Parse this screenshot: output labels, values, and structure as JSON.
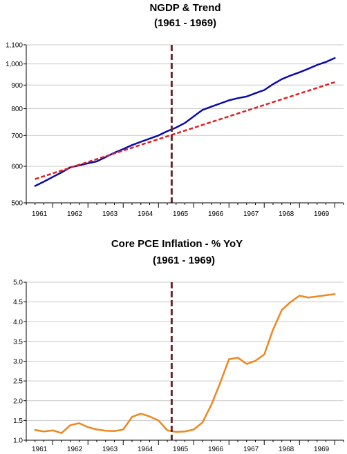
{
  "chart_data": [
    {
      "type": "line",
      "title": "NGDP & Trend",
      "subtitle": "(1961 - 1969)",
      "scale": "log",
      "ylim": [
        500,
        1100
      ],
      "yticks": [
        500,
        600,
        700,
        800,
        900,
        1000,
        1100
      ],
      "ytick_labels": [
        "500",
        "600",
        "700",
        "800",
        "900",
        "1,000",
        "1,100"
      ],
      "xlim": [
        1960.75,
        1969.75
      ],
      "xticks": [
        1961,
        1962,
        1963,
        1964,
        1965,
        1966,
        1967,
        1968,
        1969
      ],
      "xtick_labels": [
        "1961",
        "1962",
        "1963",
        "1964",
        "1965",
        "1966",
        "1967",
        "1968",
        "1969"
      ],
      "grid": "horizontal",
      "vline": {
        "x": 1964.875,
        "color": "#6b2a2a"
      },
      "series": [
        {
          "color": "#0a0aa8",
          "style": "solid",
          "x": [
            1961.0,
            1961.25,
            1961.5,
            1961.75,
            1962.0,
            1962.25,
            1962.5,
            1962.75,
            1963.0,
            1963.25,
            1963.5,
            1963.75,
            1964.0,
            1964.25,
            1964.5,
            1964.75,
            1965.0,
            1965.25,
            1965.5,
            1965.75,
            1966.0,
            1966.25,
            1966.5,
            1966.75,
            1967.0,
            1967.25,
            1967.5,
            1967.75,
            1968.0,
            1968.25,
            1968.5,
            1968.75,
            1969.0,
            1969.25,
            1969.5
          ],
          "y": [
            544,
            556,
            569,
            582,
            597,
            603,
            609,
            615,
            628,
            642,
            654,
            667,
            678,
            689,
            700,
            715,
            728,
            745,
            770,
            795,
            808,
            821,
            834,
            843,
            850,
            864,
            878,
            904,
            927,
            944,
            959,
            976,
            995,
            1010,
            1030
          ]
        },
        {
          "color": "#e02020",
          "style": "dashed",
          "x": [
            1961.0,
            1969.5
          ],
          "y": [
            563,
            913
          ]
        }
      ]
    },
    {
      "type": "line",
      "title": "Core PCE Inflation - % YoY",
      "subtitle": "(1961 - 1969)",
      "scale": "linear",
      "ylim": [
        1.0,
        5.0
      ],
      "yticks": [
        1.0,
        1.5,
        2.0,
        2.5,
        3.0,
        3.5,
        4.0,
        4.5,
        5.0
      ],
      "ytick_labels": [
        "1.0",
        "1.5",
        "2.0",
        "2.5",
        "3.0",
        "3.5",
        "4.0",
        "4.5",
        "5.0"
      ],
      "xlim": [
        1960.75,
        1969.75
      ],
      "xticks": [
        1961,
        1962,
        1963,
        1964,
        1965,
        1966,
        1967,
        1968,
        1969
      ],
      "xtick_labels": [
        "1961",
        "1962",
        "1963",
        "1964",
        "1965",
        "1966",
        "1967",
        "1968",
        "1969"
      ],
      "grid": "horizontal",
      "vline": {
        "x": 1964.875,
        "color": "#6b2a2a"
      },
      "series": [
        {
          "color": "#f0861e",
          "style": "solid",
          "x": [
            1961.0,
            1961.25,
            1961.5,
            1961.75,
            1962.0,
            1962.25,
            1962.5,
            1962.75,
            1963.0,
            1963.25,
            1963.5,
            1963.75,
            1964.0,
            1964.25,
            1964.5,
            1964.75,
            1965.0,
            1965.25,
            1965.5,
            1965.75,
            1966.0,
            1966.25,
            1966.5,
            1966.75,
            1967.0,
            1967.25,
            1967.5,
            1967.75,
            1968.0,
            1968.25,
            1968.5,
            1968.75,
            1969.0,
            1969.25,
            1969.5
          ],
          "y": [
            1.26,
            1.22,
            1.25,
            1.18,
            1.38,
            1.43,
            1.33,
            1.27,
            1.24,
            1.23,
            1.27,
            1.59,
            1.67,
            1.6,
            1.5,
            1.25,
            1.21,
            1.22,
            1.27,
            1.45,
            1.9,
            2.45,
            3.05,
            3.09,
            2.93,
            3.01,
            3.17,
            3.8,
            4.3,
            4.5,
            4.66,
            4.61,
            4.64,
            4.67,
            4.7
          ]
        }
      ]
    }
  ]
}
